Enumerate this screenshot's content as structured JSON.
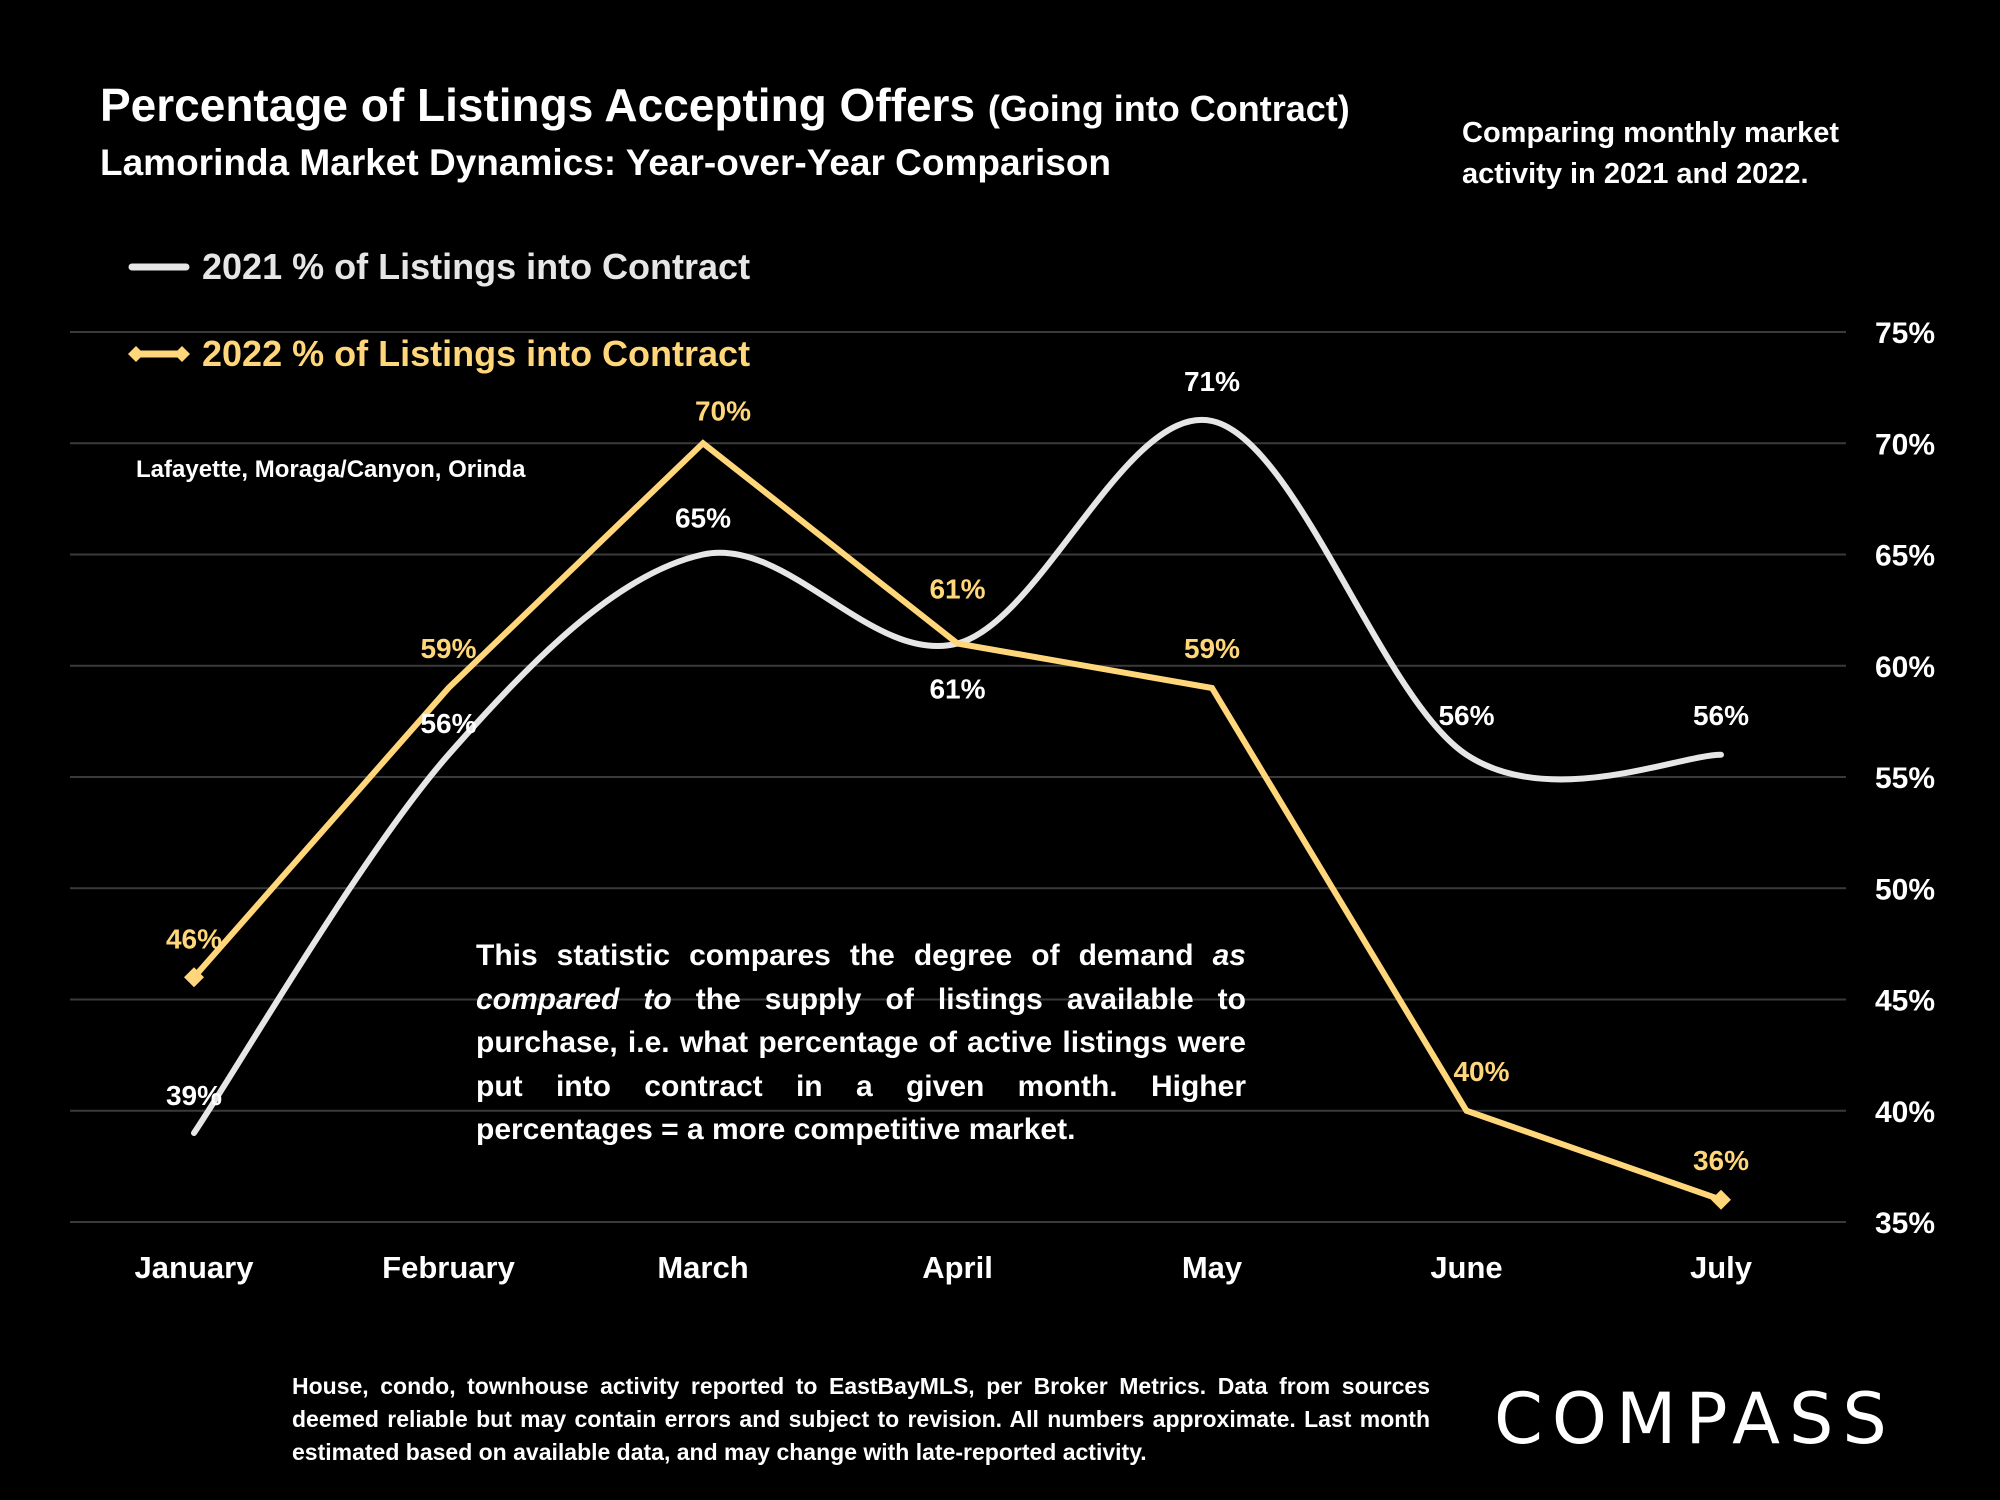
{
  "header": {
    "title": "Percentage of Listings Accepting Offers",
    "title_suffix": "(Going into Contract)",
    "subtitle": "Lamorinda Market Dynamics: Year-over-Year Comparison",
    "side_note": "Comparing monthly market activity in 2021 and 2022."
  },
  "region_label": "Lafayette, Moraga/Canyon, Orinda",
  "description": {
    "part1": "This statistic compares the degree of demand ",
    "emphasis": "as compared to",
    "part2": " the supply of listings available to purchase, i.e. what percentage of active listings were put into contract in a given month. Higher percentages = a more competitive market."
  },
  "footnote": "House, condo, townhouse activity reported to EastBayMLS, per Broker Metrics. Data from sources deemed reliable but may contain errors and subject to revision. All numbers approximate. Last month estimated based on available data, and may change with late-reported activity.",
  "logo_text": "COMPASS",
  "colors": {
    "series_2021": "#e6e6e6",
    "series_2022": "#ffd77a",
    "background": "#000000",
    "grid": "#3a3a3a"
  },
  "chart_data": {
    "type": "line",
    "categories": [
      "January",
      "February",
      "March",
      "April",
      "May",
      "June",
      "July"
    ],
    "ylim": [
      35,
      75
    ],
    "y_ticks": [
      35,
      40,
      45,
      50,
      55,
      60,
      65,
      70,
      75
    ],
    "y_tick_suffix": "%",
    "grid": true,
    "y_axis_side": "right",
    "legend_placement": "top-left",
    "series": [
      {
        "name": "2021 % of Listings into Contract",
        "values": [
          39,
          56,
          65,
          61,
          71,
          56,
          56
        ],
        "labels": [
          "39%",
          "56%",
          "65%",
          "61%",
          "71%",
          "56%",
          "56%"
        ],
        "smooth": true,
        "marker": "none"
      },
      {
        "name": "2022 % of Listings into Contract",
        "values": [
          46,
          59,
          70,
          61,
          59,
          40,
          36
        ],
        "labels": [
          "46%",
          "59%",
          "70%",
          "61%",
          "59%",
          "40%",
          "36%"
        ],
        "smooth": false,
        "marker": "diamond-ends"
      }
    ]
  }
}
